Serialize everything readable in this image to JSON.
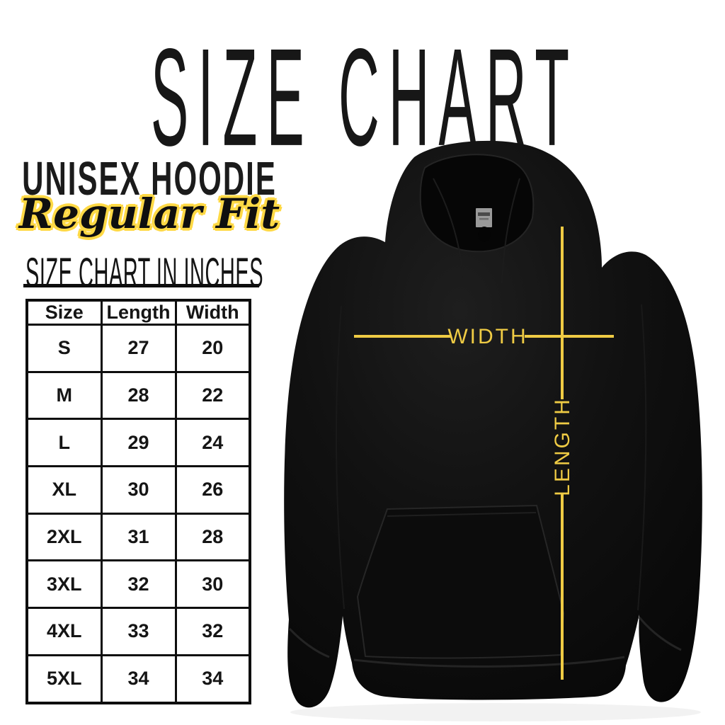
{
  "title": "SIZE CHART",
  "product": {
    "name": "UNISEX HOODIE",
    "fit": "Regular Fit"
  },
  "table_heading": "SIZE CHART IN INCHES",
  "size_table": {
    "columns": [
      "Size",
      "Length",
      "Width"
    ],
    "rows": [
      [
        "S",
        "27",
        "20"
      ],
      [
        "M",
        "28",
        "22"
      ],
      [
        "L",
        "29",
        "24"
      ],
      [
        "XL",
        "30",
        "26"
      ],
      [
        "2XL",
        "31",
        "28"
      ],
      [
        "3XL",
        "32",
        "30"
      ],
      [
        "4XL",
        "33",
        "32"
      ],
      [
        "5XL",
        "34",
        "34"
      ]
    ]
  },
  "annotations": {
    "width_label": "WIDTH",
    "length_label": "LENGTH"
  },
  "colors": {
    "accent_yellow": "#EFCB44",
    "script_outline_yellow": "#FFD945",
    "ink": "#141414",
    "hoodie_black": "#0d0d0d"
  },
  "chart_data": {
    "type": "table",
    "title": "SIZE CHART IN INCHES",
    "columns": [
      "Size",
      "Length",
      "Width"
    ],
    "rows": [
      [
        "S",
        27,
        20
      ],
      [
        "M",
        28,
        22
      ],
      [
        "L",
        29,
        24
      ],
      [
        "XL",
        30,
        26
      ],
      [
        "2XL",
        31,
        28
      ],
      [
        "3XL",
        32,
        30
      ],
      [
        "4XL",
        33,
        32
      ],
      [
        "5XL",
        34,
        34
      ]
    ],
    "units": "inches"
  }
}
